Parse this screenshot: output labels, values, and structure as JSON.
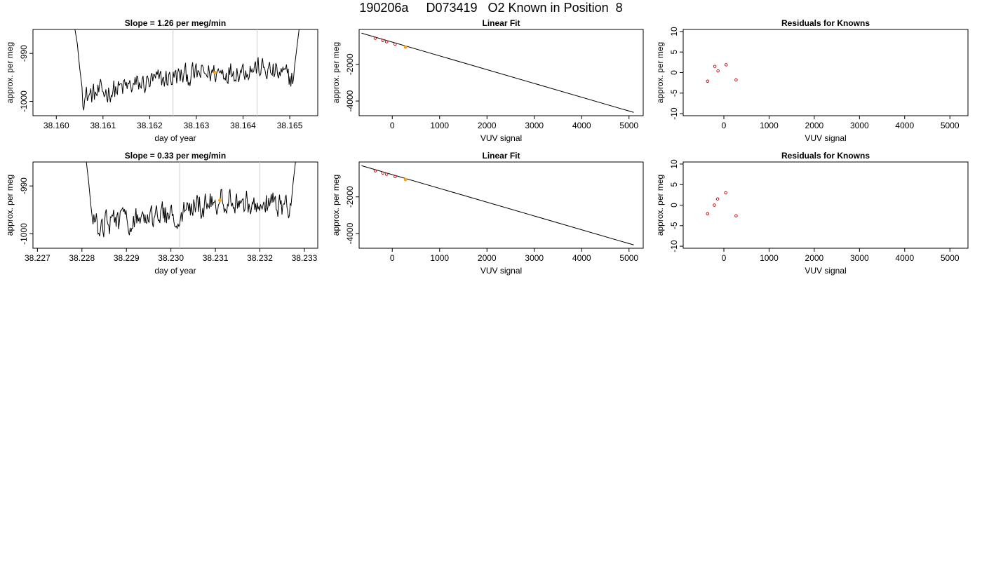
{
  "main_title": "190206a     D073419   O2 Known in Position  8",
  "colors": {
    "line": "#000000",
    "vline": "#cccccc",
    "highlight": "#ffa500",
    "residual": "#cc0000"
  },
  "chart_data": [
    {
      "type": "line",
      "row": 0,
      "col": 0,
      "title": "Slope =  1.26  per meg/min",
      "xlabel": "day of year",
      "ylabel": "approx. per meg",
      "xlim": [
        38.1595,
        38.1656
      ],
      "ylim": [
        -1003,
        -985
      ],
      "xticks": [
        38.16,
        38.161,
        38.162,
        38.163,
        38.164,
        38.165
      ],
      "xtick_labels": [
        "38.160",
        "38.161",
        "38.162",
        "38.163",
        "38.164",
        "38.165"
      ],
      "yticks": [
        -1000,
        -990
      ],
      "ytick_labels": [
        "-1000",
        "-990"
      ],
      "vlines": [
        38.1625,
        38.1643
      ],
      "highlight_point": [
        38.1634,
        -994
      ],
      "x_start": 38.1604,
      "x_end": 38.1652,
      "n_points": 240,
      "left_spike": [
        [
          38.1604,
          -985
        ],
        [
          38.16045,
          -988
        ],
        [
          38.1605,
          -993
        ],
        [
          38.16055,
          -997
        ]
      ],
      "right_spike": [
        [
          38.1651,
          -993
        ],
        [
          38.16515,
          -989
        ],
        [
          38.1652,
          -985
        ]
      ],
      "trend": [
        [
          38.1606,
          -999
        ],
        [
          38.1625,
          -995
        ],
        [
          38.1643,
          -993
        ],
        [
          38.165,
          -995
        ]
      ],
      "noise_amplitude": 2.2
    },
    {
      "type": "line",
      "row": 0,
      "col": 1,
      "title": "Linear Fit",
      "xlabel": "VUV signal",
      "ylabel": "approx. per meg",
      "xlim": [
        -700,
        5300
      ],
      "ylim": [
        -4800,
        -100
      ],
      "xticks": [
        0,
        1000,
        2000,
        3000,
        4000,
        5000
      ],
      "xtick_labels": [
        "0",
        "1000",
        "2000",
        "3000",
        "4000",
        "5000"
      ],
      "yticks": [
        -4000,
        -2000
      ],
      "ytick_labels": [
        "-4000",
        "-2000"
      ],
      "fit_line": [
        [
          -650,
          -300
        ],
        [
          5100,
          -4620
        ]
      ],
      "points": [
        [
          -360,
          -580
        ],
        [
          -200,
          -700
        ],
        [
          -120,
          -770
        ],
        [
          60,
          -900
        ]
      ],
      "highlight_point": [
        280,
        -1060
      ]
    },
    {
      "type": "scatter",
      "row": 0,
      "col": 2,
      "title": "Residuals for Knowns",
      "xlabel": "VUV signal",
      "ylabel": "approx. per meg",
      "xlim": [
        -900,
        5400
      ],
      "ylim": [
        -10.5,
        10.5
      ],
      "xticks": [
        0,
        1000,
        2000,
        3000,
        4000,
        5000
      ],
      "xtick_labels": [
        "0",
        "1000",
        "2000",
        "3000",
        "4000",
        "5000"
      ],
      "yticks": [
        -10,
        -5,
        0,
        5,
        10
      ],
      "ytick_labels": [
        "-10",
        "-5",
        "0",
        "5",
        "10"
      ],
      "points": [
        [
          -360,
          -2.1
        ],
        [
          -200,
          1.5
        ],
        [
          -130,
          0.4
        ],
        [
          50,
          1.9
        ],
        [
          270,
          -1.8
        ]
      ]
    },
    {
      "type": "line",
      "row": 1,
      "col": 0,
      "title": "Slope =  0.33  per meg/min",
      "xlabel": "day of year",
      "ylabel": "approx. per meg",
      "xlim": [
        38.2269,
        38.2333
      ],
      "ylim": [
        -1003,
        -985
      ],
      "xticks": [
        38.227,
        38.228,
        38.229,
        38.23,
        38.231,
        38.232,
        38.233
      ],
      "xtick_labels": [
        "38.227",
        "38.228",
        "38.229",
        "38.230",
        "38.231",
        "38.232",
        "38.233"
      ],
      "yticks": [
        -1000,
        -990
      ],
      "ytick_labels": [
        "-1000",
        "-990"
      ],
      "vlines": [
        38.2302,
        38.232
      ],
      "highlight_point": [
        38.2311,
        -993
      ],
      "x_start": 38.2281,
      "x_end": 38.2328,
      "n_points": 240,
      "left_spike": [
        [
          38.2281,
          -985
        ],
        [
          38.22815,
          -989
        ],
        [
          38.2282,
          -994
        ],
        [
          38.22825,
          -998
        ]
      ],
      "right_spike": [
        [
          38.2327,
          -994
        ],
        [
          38.23275,
          -989
        ],
        [
          38.2328,
          -985
        ]
      ],
      "trend": [
        [
          38.2283,
          -998
        ],
        [
          38.23,
          -996
        ],
        [
          38.2311,
          -993
        ],
        [
          38.2326,
          -994
        ]
      ],
      "noise_amplitude": 2.4
    },
    {
      "type": "line",
      "row": 1,
      "col": 1,
      "title": "Linear Fit",
      "xlabel": "VUV signal",
      "ylabel": "approx. per meg",
      "xlim": [
        -700,
        5300
      ],
      "ylim": [
        -4800,
        -100
      ],
      "xticks": [
        0,
        1000,
        2000,
        3000,
        4000,
        5000
      ],
      "xtick_labels": [
        "0",
        "1000",
        "2000",
        "3000",
        "4000",
        "5000"
      ],
      "yticks": [
        -4000,
        -2000
      ],
      "ytick_labels": [
        "-4000",
        "-2000"
      ],
      "fit_line": [
        [
          -650,
          -300
        ],
        [
          5100,
          -4620
        ]
      ],
      "points": [
        [
          -360,
          -580
        ],
        [
          -200,
          -700
        ],
        [
          -120,
          -770
        ],
        [
          60,
          -900
        ]
      ],
      "highlight_point": [
        280,
        -1060
      ]
    },
    {
      "type": "scatter",
      "row": 1,
      "col": 2,
      "title": "Residuals for Knowns",
      "xlabel": "VUV signal",
      "ylabel": "approx. per meg",
      "xlim": [
        -900,
        5400
      ],
      "ylim": [
        -10.5,
        10.5
      ],
      "xticks": [
        0,
        1000,
        2000,
        3000,
        4000,
        5000
      ],
      "xtick_labels": [
        "0",
        "1000",
        "2000",
        "3000",
        "4000",
        "5000"
      ],
      "yticks": [
        -10,
        -5,
        0,
        5,
        10
      ],
      "ytick_labels": [
        "-10",
        "-5",
        "0",
        "5",
        "10"
      ],
      "points": [
        [
          -360,
          -2.1
        ],
        [
          -210,
          0.0
        ],
        [
          -140,
          1.5
        ],
        [
          40,
          3.0
        ],
        [
          270,
          -2.6
        ]
      ]
    }
  ]
}
